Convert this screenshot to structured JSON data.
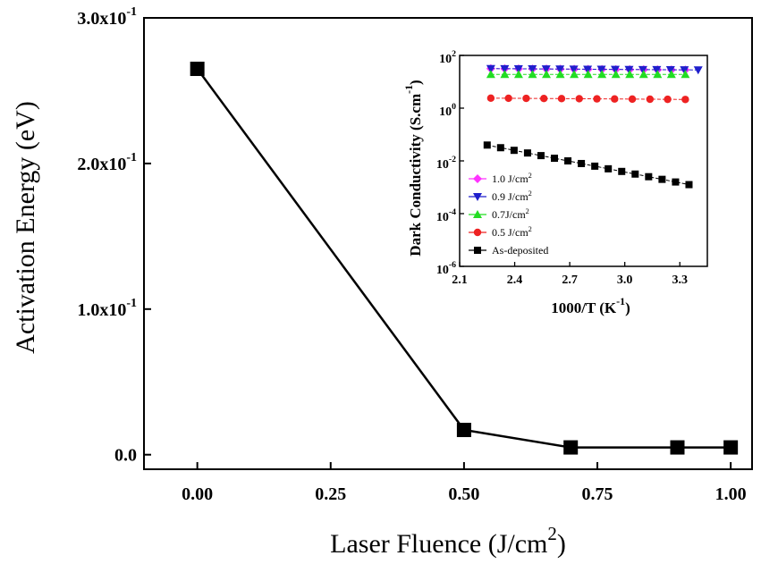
{
  "chart_data": [
    {
      "type": "line",
      "title": "",
      "xlabel": "Laser Fluence (J/cm",
      "xlabel_sup": "2",
      "xlabel_end": ")",
      "ylabel": "Activation Energy (eV)",
      "xlim": [
        -0.1,
        1.04
      ],
      "ylim": [
        -0.01,
        0.3
      ],
      "x_ticks": [
        "0.00",
        "0.25",
        "0.50",
        "0.75",
        "1.00"
      ],
      "x_tick_values": [
        0,
        0.25,
        0.5,
        0.75,
        1.0
      ],
      "y_ticks": [
        {
          "value": 0,
          "base": "0.0",
          "exp": ""
        },
        {
          "value": 0.1,
          "base": "1.0x10",
          "exp": "-1"
        },
        {
          "value": 0.2,
          "base": "2.0x10",
          "exp": "-1"
        },
        {
          "value": 0.3,
          "base": "3.0x10",
          "exp": "-1"
        }
      ],
      "series": [
        {
          "x": [
            0,
            0.5,
            0.7,
            0.9,
            1.0
          ],
          "y": [
            0.265,
            0.017,
            0.005,
            0.005,
            0.005
          ],
          "marker": "square",
          "color": "#000000"
        }
      ]
    },
    {
      "type": "scatter",
      "title": "",
      "xlabel": "1000/T (K",
      "xlabel_sup": "-1",
      "xlabel_end": ")",
      "ylabel": "Dark Conductivity (S.cm",
      "ylabel_sup": "-1",
      "ylabel_end": ")",
      "yscale": "log",
      "xlim": [
        2.1,
        3.45
      ],
      "ylim_exp": [
        -6,
        2
      ],
      "x_ticks": [
        "2.1",
        "2.4",
        "2.7",
        "3.0",
        "3.3"
      ],
      "x_tick_values": [
        2.1,
        2.4,
        2.7,
        3.0,
        3.3
      ],
      "y_ticks": [
        {
          "exp_value": 2,
          "base": "10",
          "exp": "2"
        },
        {
          "exp_value": 0,
          "base": "10",
          "exp": "0"
        },
        {
          "exp_value": -2,
          "base": "10",
          "exp": "-2"
        },
        {
          "exp_value": -4,
          "base": "10",
          "exp": "-4"
        },
        {
          "exp_value": -6,
          "base": "10",
          "exp": "-6"
        }
      ],
      "legend_position": "bottom-left",
      "series": [
        {
          "name": "1.0 J/cm",
          "name_sup": "2",
          "color": "#ff33ff",
          "marker": "diamond",
          "x_start": 2.27,
          "x_end": 3.33,
          "n": 15,
          "log10_y_start": 1.5,
          "log10_y_end": 1.45
        },
        {
          "name": "0.9 J/cm",
          "name_sup": "2",
          "color": "#1f1fcc",
          "marker": "triangle-down",
          "x_start": 2.27,
          "x_end": 3.4,
          "n": 16,
          "log10_y_start": 1.5,
          "log10_y_end": 1.45
        },
        {
          "name": "0.7J/cm",
          "name_sup": "2",
          "color": "#22dd22",
          "marker": "triangle-up",
          "x_start": 2.27,
          "x_end": 3.33,
          "n": 15,
          "log10_y_start": 1.28,
          "log10_y_end": 1.28
        },
        {
          "name": "0.5 J/cm",
          "name_sup": "2",
          "color": "#ee2222",
          "marker": "circle",
          "x_start": 2.27,
          "x_end": 3.33,
          "n": 12,
          "log10_y_start": 0.38,
          "log10_y_end": 0.33
        },
        {
          "name": "As-deposited",
          "name_sup": "",
          "color": "#000000",
          "marker": "square",
          "x_start": 2.25,
          "x_end": 3.35,
          "n": 16,
          "log10_y_start": -1.4,
          "log10_y_end": -2.9
        }
      ]
    }
  ]
}
